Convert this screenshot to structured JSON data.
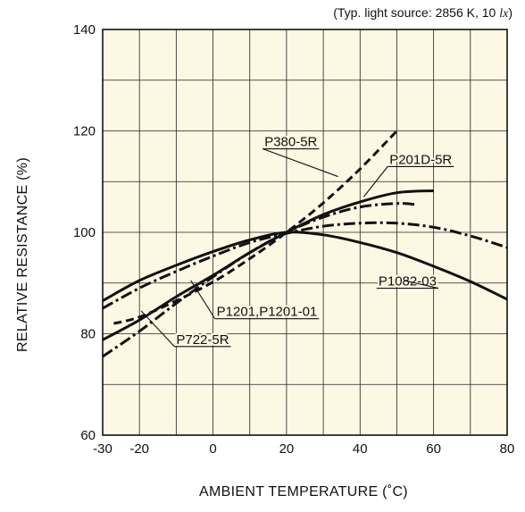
{
  "chart_data": {
    "type": "line",
    "title": "",
    "note_prefix": "(Typ. light source: 2856 K, 10 ",
    "note_unit": "lx",
    "note_suffix": ")",
    "xlabel": "AMBIENT TEMPERATURE (˚C)",
    "ylabel": "RELATIVE RESISTANCE (%)",
    "xlim": [
      -30,
      80
    ],
    "ylim": [
      60,
      140
    ],
    "x_ticks": [
      -30,
      -20,
      0,
      20,
      40,
      60,
      80
    ],
    "y_ticks": [
      60,
      80,
      100,
      120,
      140
    ],
    "grid": true,
    "background": "#fdf8e4",
    "series": [
      {
        "name": "P1082-03",
        "style": "solid",
        "x": [
          -30,
          -20,
          -10,
          0,
          10,
          20,
          30,
          40,
          50,
          60,
          70,
          80
        ],
        "y": [
          86.5,
          90.5,
          93.5,
          96.2,
          98.5,
          100,
          99.5,
          98,
          96,
          93.3,
          90.3,
          86.8
        ]
      },
      {
        "name": "P201D-5R",
        "style": "solid",
        "x": [
          -30,
          -20,
          -10,
          0,
          10,
          20,
          30,
          40,
          50,
          60
        ],
        "y": [
          78.8,
          82.7,
          87.3,
          91.5,
          96,
          100,
          103.5,
          106,
          107.8,
          108.2
        ]
      },
      {
        "name": "P722-5R",
        "style": "dashdot",
        "x": [
          -30,
          -20,
          -10,
          0,
          10,
          20,
          30,
          40,
          50,
          55
        ],
        "y": [
          75.5,
          80.5,
          86,
          91.2,
          96,
          100,
          103,
          105,
          105.7,
          105.5
        ]
      },
      {
        "name": "P380-5R",
        "style": "dashed",
        "x": [
          -27,
          -20,
          -10,
          0,
          10,
          20,
          30,
          40,
          50
        ],
        "y": [
          82,
          83.3,
          86.5,
          90.2,
          94.8,
          100,
          105.8,
          112.5,
          120
        ]
      },
      {
        "name": "P1201,P1201-01",
        "style": "dashdot",
        "x": [
          -30,
          -20,
          -10,
          0,
          10,
          20,
          30,
          40,
          50,
          60,
          70,
          80
        ],
        "y": [
          85,
          89,
          92.3,
          95.3,
          98,
          99.8,
          101.2,
          101.8,
          101.8,
          101,
          99.3,
          97
        ]
      }
    ],
    "annotations": [
      {
        "text": "P380-5R",
        "series": "P380-5R"
      },
      {
        "text": "P201D-5R",
        "series": "P201D-5R"
      },
      {
        "text": "P1082-03",
        "series": "P1082-03"
      },
      {
        "text": "P1201,P1201-01",
        "series": "P1201,P1201-01"
      },
      {
        "text": "P722-5R",
        "series": "P722-5R"
      }
    ]
  }
}
